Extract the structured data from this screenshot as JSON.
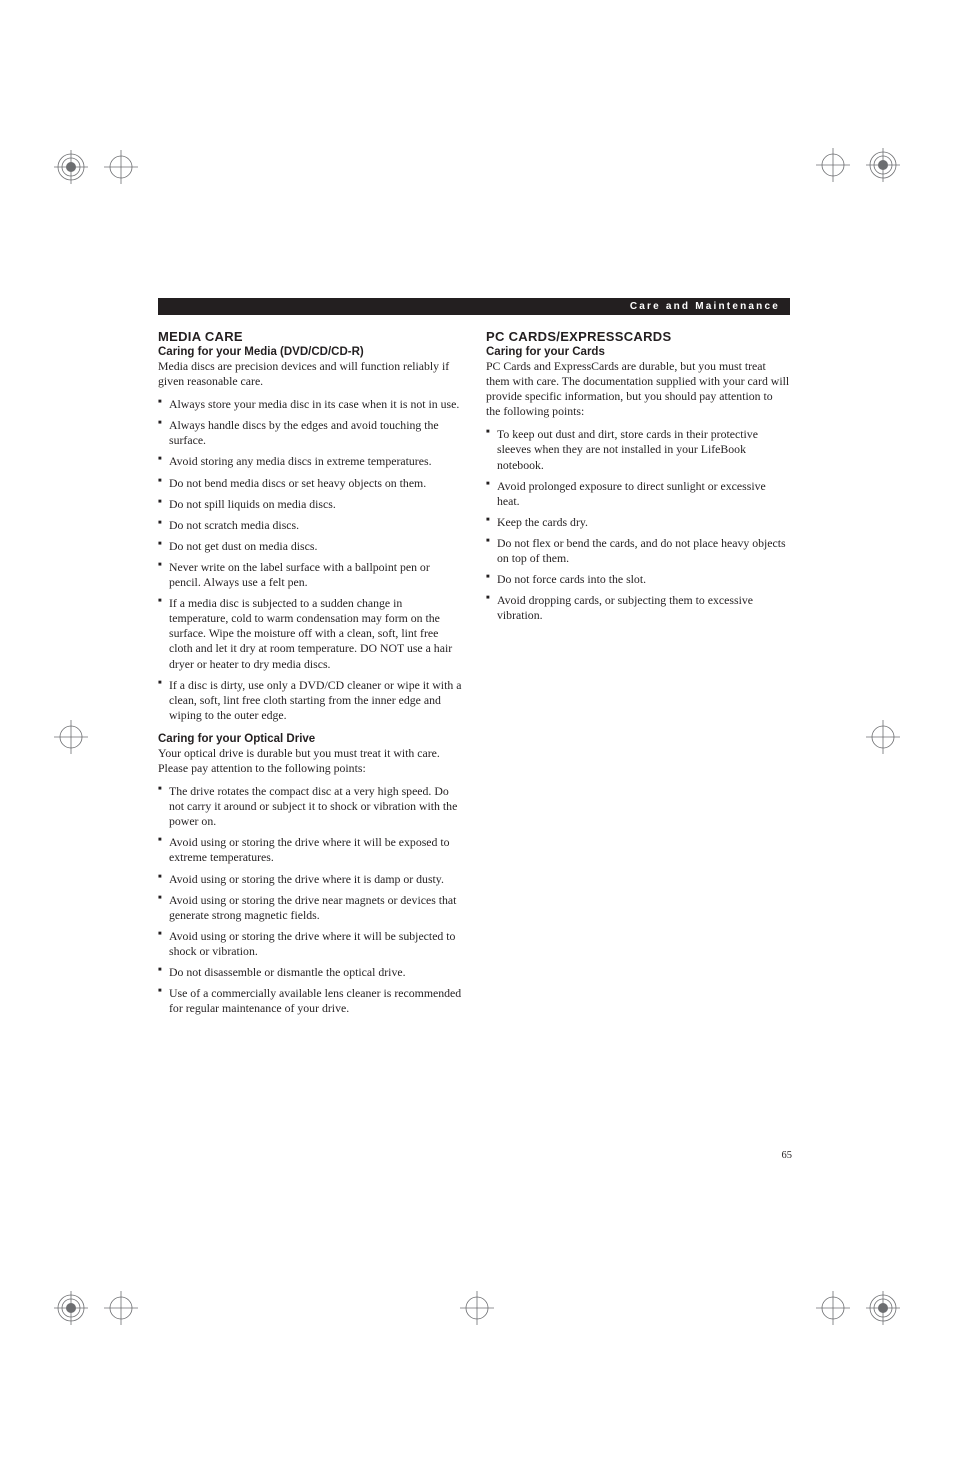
{
  "header": {
    "text": "Care and Maintenance"
  },
  "pageNumber": "65",
  "left": {
    "sectionTitle": "MEDIA CARE",
    "sub1": {
      "title": "Caring for your Media (DVD/CD/CD-R)",
      "intro": "Media discs are precision devices and will function reliably if given reasonable care.",
      "items": [
        "Always store your media disc in its case when it is not in use.",
        "Always handle discs by the edges and avoid touching the surface.",
        "Avoid storing any media discs in extreme temperatures.",
        "Do not bend media discs or set heavy objects on them.",
        "Do not spill liquids on media discs.",
        "Do not scratch media discs.",
        "Do not get dust on media discs.",
        "Never write on the label surface with a ballpoint pen or pencil. Always use a felt pen.",
        "If a media disc is subjected to a sudden change in temperature, cold to warm condensation may form on the surface. Wipe the moisture off with a clean, soft, lint free cloth and let it dry at room temperature. DO NOT use a hair dryer or heater to dry media discs.",
        "If a disc is dirty, use only a DVD/CD cleaner or wipe it with a clean, soft, lint free cloth starting from the inner edge and wiping to the outer edge."
      ]
    },
    "sub2": {
      "title": "Caring for your Optical Drive",
      "intro": "Your optical drive is durable but you must treat it with care. Please pay attention to the following points:",
      "items": [
        "The drive rotates the compact disc at a very high speed. Do not carry it around or subject it to shock or vibration with the power on.",
        "Avoid using or storing the drive where it will be exposed to extreme temperatures.",
        "Avoid using or storing the drive where it is damp or dusty.",
        "Avoid using or storing the drive near magnets or devices that generate strong magnetic fields.",
        "Avoid using or storing the drive where it will be subjected to shock or vibration.",
        "Do not disassemble or dismantle the optical drive.",
        "Use of a commercially available lens cleaner is recommended for regular maintenance of your drive."
      ]
    }
  },
  "right": {
    "sectionTitle": "PC CARDS/EXPRESSCARDS",
    "sub1": {
      "title": "Caring for your Cards",
      "intro": "PC Cards and ExpressCards are durable, but you must treat them with care. The documentation supplied with your card will provide specific information, but you should pay attention to the following points:",
      "items": [
        "To keep out dust and dirt, store cards in their protective sleeves when they are not installed in your LifeBook notebook.",
        "Avoid prolonged exposure to direct sunlight or excessive heat.",
        "Keep the cards dry.",
        "Do not flex or bend the cards, and do not place heavy objects on top of them.",
        "Do not force cards into the slot.",
        "Avoid dropping cards, or subjecting them to excessive vibration."
      ]
    }
  }
}
